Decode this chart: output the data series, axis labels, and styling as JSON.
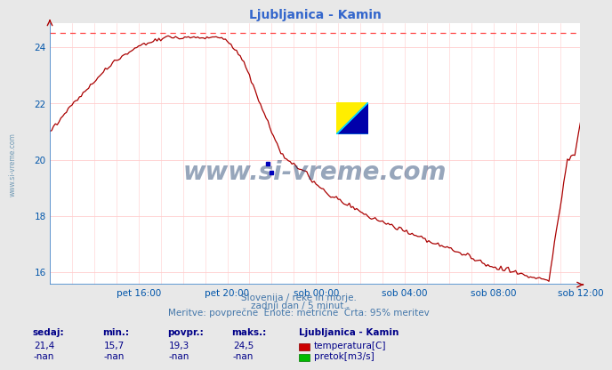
{
  "title": "Ljubljanica - Kamin",
  "fig_bg_color": "#e8e8e8",
  "plot_bg_color": "#ffffff",
  "grid_color": "#ffcccc",
  "grid_color_v": "#ddddff",
  "line_color": "#aa0000",
  "dashed_line_color": "#ff4444",
  "dashed_line_y": 24.5,
  "ylim": [
    15.55,
    24.85
  ],
  "yticks": [
    16,
    18,
    20,
    22,
    24
  ],
  "tick_label_color": "#0055aa",
  "title_color": "#3366cc",
  "watermark_text": "www.si-vreme.com",
  "watermark_color": "#1a3a6a",
  "watermark_alpha": 0.45,
  "footer_line1": "Slovenija / reke in morje.",
  "footer_line2": "zadnji dan / 5 minut.",
  "footer_line3": "Meritve: povprečne  Enote: metrične  Črta: 95% meritev",
  "footer_color": "#4477aa",
  "stats_color": "#000088",
  "sedaj": "21,4",
  "min_val": "15,7",
  "povpr": "19,3",
  "maks": "24,5",
  "sedaj2": "-nan",
  "min_val2": "-nan",
  "povpr2": "-nan",
  "maks2": "-nan",
  "legend_station": "Ljubljanica - Kamin",
  "legend_temp": "temperatura[C]",
  "legend_pretok": "pretok[m3/s]",
  "temp_color": "#cc0000",
  "pretok_color": "#00bb00",
  "n_points": 288,
  "xtick_positions": [
    48,
    96,
    144,
    192,
    240,
    287
  ],
  "xtick_labels": [
    "pet 16:00",
    "pet 20:00",
    "sob 00:00",
    "sob 04:00",
    "sob 08:00",
    "sob 12:00"
  ],
  "axis_color": "#4488cc",
  "spine_color": "#4488cc"
}
